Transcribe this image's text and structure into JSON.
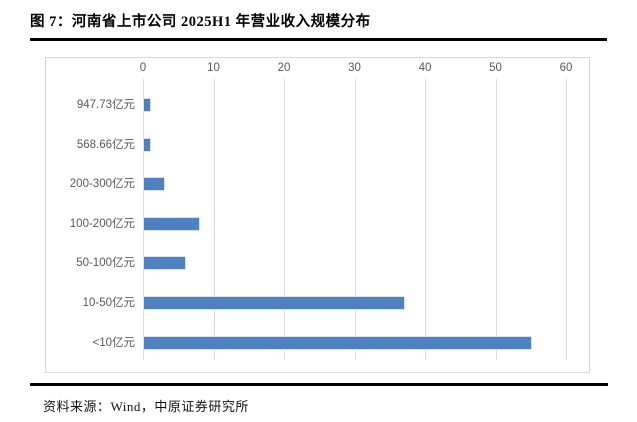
{
  "figure": {
    "title": "图 7：河南省上市公司 2025H1 年营业收入规模分布",
    "source": "资料来源：Wind，中原证券研究所"
  },
  "colors": {
    "bar_fill": "#4E81BD",
    "bar_border": "#D8E3F2",
    "gridline": "#D9D9D9",
    "frame_border": "#D9D9D9",
    "tick_label": "#595959",
    "rule": "#000000"
  },
  "chart_data": {
    "type": "bar",
    "orientation": "horizontal",
    "title": "河南省上市公司2025H1年营业收入规模分布",
    "categories": [
      "947.73亿元",
      "568.66亿元",
      "200-300亿元",
      "100-200亿元",
      "50-100亿元",
      "10-50亿元",
      "<10亿元"
    ],
    "values": [
      1,
      1,
      3,
      8,
      6,
      37,
      55
    ],
    "xlabel": "",
    "ylabel": "",
    "xlim": [
      0,
      60
    ],
    "xticks": [
      0,
      10,
      20,
      30,
      40,
      50,
      60
    ],
    "grid": true,
    "axis_position": "top",
    "legend": "none"
  }
}
